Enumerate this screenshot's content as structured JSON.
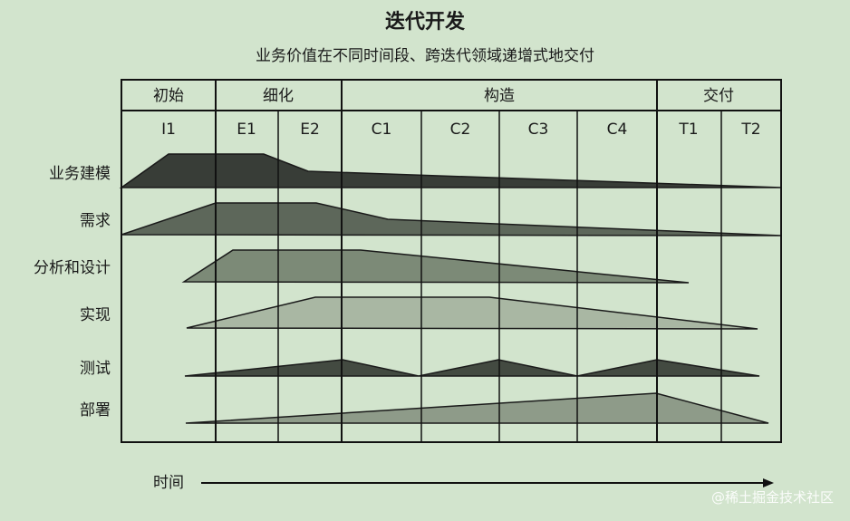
{
  "title": "迭代开发",
  "subtitle": "业务价值在不同时间段、跨迭代领域递增式地交付",
  "phases": [
    "初始",
    "细化",
    "构造",
    "交付"
  ],
  "iterations": [
    "I1",
    "E1",
    "E2",
    "C1",
    "C2",
    "C3",
    "C4",
    "T1",
    "T2"
  ],
  "disciplines": [
    "业务建模",
    "需求",
    "分析和设计",
    "实现",
    "测试",
    "部署"
  ],
  "time_label": "时间",
  "watermark": "@稀土掘金技术社区",
  "colors": {
    "background": "#d2e4cd",
    "business": "#383d37",
    "requirements": "#5d675a",
    "analysis": "#7c8a77",
    "implementation": "#a9b7a3",
    "testing": "#434a41",
    "deployment": "#8e9b89"
  }
}
